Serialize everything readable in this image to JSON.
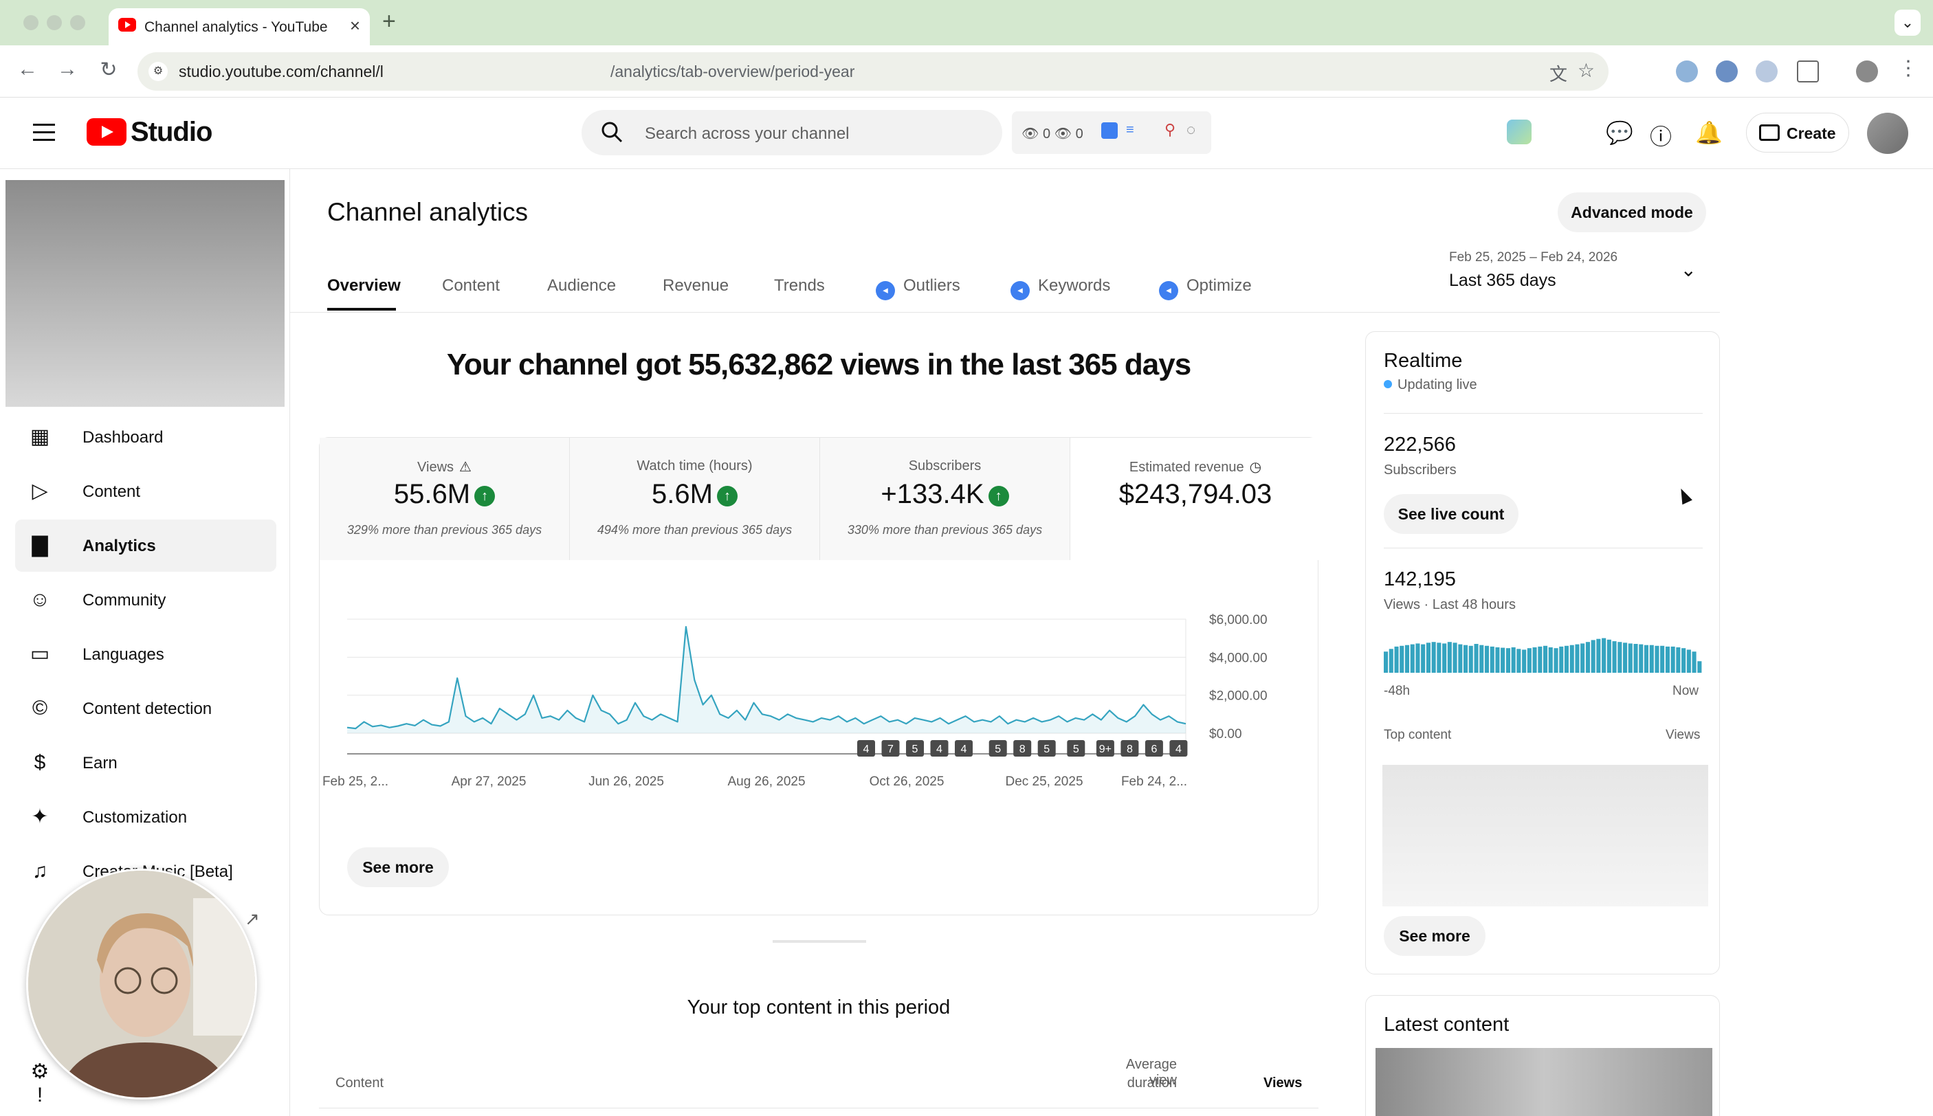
{
  "browser": {
    "tab_title": "Channel analytics - YouTube S",
    "url_part1": "studio.youtube.com/channel/l",
    "url_part2": "/analytics/tab-overview/period-year"
  },
  "header": {
    "logo_text": "Studio",
    "search_placeholder": "Search across your channel",
    "ext_strip_text": "👁 0  👁 0",
    "create_label": "Create"
  },
  "sidebar": {
    "items": [
      {
        "label": "Dashboard",
        "icon": "dashboard-icon"
      },
      {
        "label": "Content",
        "icon": "content-icon"
      },
      {
        "label": "Analytics",
        "icon": "analytics-icon"
      },
      {
        "label": "Community",
        "icon": "community-icon"
      },
      {
        "label": "Languages",
        "icon": "subtitles-icon"
      },
      {
        "label": "Content detection",
        "icon": "copyright-icon"
      },
      {
        "label": "Earn",
        "icon": "dollar-icon"
      },
      {
        "label": "Customization",
        "icon": "magic-wand-icon"
      },
      {
        "label": "Creator Music [Beta]",
        "icon": "music-icon"
      }
    ],
    "active_index": 2
  },
  "main": {
    "title": "Channel analytics",
    "advanced_mode_label": "Advanced mode",
    "date_range_sub": "Feb 25, 2025 – Feb 24, 2026",
    "date_range_main": "Last 365 days",
    "tabs": [
      {
        "label": "Overview",
        "badge": false
      },
      {
        "label": "Content",
        "badge": false
      },
      {
        "label": "Audience",
        "badge": false
      },
      {
        "label": "Revenue",
        "badge": false
      },
      {
        "label": "Trends",
        "badge": false
      },
      {
        "label": "Outliers",
        "badge": true
      },
      {
        "label": "Keywords",
        "badge": true
      },
      {
        "label": "Optimize",
        "badge": true
      }
    ],
    "headline": "Your channel got 55,632,862 views in the last 365 days",
    "metrics": [
      {
        "label": "Views",
        "value": "55.6M",
        "note": "329% more than previous 365 days",
        "trend": "up"
      },
      {
        "label": "Watch time (hours)",
        "value": "5.6M",
        "note": "494% more than previous 365 days",
        "trend": "up"
      },
      {
        "label": "Subscribers",
        "value": "+133.4K",
        "note": "330% more than previous 365 days",
        "trend": "up"
      },
      {
        "label": "Estimated revenue",
        "value": "$243,794.03",
        "note": "",
        "trend": "none"
      }
    ],
    "see_more_label": "See more",
    "top_content_title": "Your top content in this period",
    "top_content_cols": {
      "content": "Content",
      "avg_view_duration_1": "Average view",
      "avg_view_duration_2": "duration",
      "views": "Views"
    }
  },
  "chart_data": {
    "type": "line",
    "title": "",
    "x_tick_labels": [
      "Feb 25, 2...",
      "Apr 27, 2025",
      "Jun 26, 2025",
      "Aug 26, 2025",
      "Oct 26, 2025",
      "Dec 25, 2025",
      "Feb 24, 2..."
    ],
    "y_tick_labels": [
      "$6,000.00",
      "$4,000.00",
      "$2,000.00",
      "$0.00"
    ],
    "ylim": [
      0,
      6000
    ],
    "grid": true,
    "series": [
      {
        "color": "#35a4c0",
        "values": [
          300,
          250,
          600,
          350,
          420,
          300,
          380,
          500,
          400,
          700,
          450,
          380,
          600,
          2900,
          900,
          600,
          800,
          500,
          1300,
          1000,
          700,
          1000,
          2000,
          800,
          900,
          700,
          1200,
          800,
          600,
          2000,
          1200,
          1000,
          500,
          700,
          1600,
          900,
          700,
          1000,
          800,
          600,
          5600,
          2800,
          1500,
          2000,
          1000,
          800,
          1200,
          700,
          1600,
          1000,
          900,
          700,
          1000,
          800,
          700,
          600,
          800,
          700,
          900,
          600,
          800,
          500,
          700,
          900,
          600,
          700,
          500,
          800,
          700,
          600,
          800,
          500,
          700,
          900,
          600,
          700,
          600,
          900,
          500,
          700,
          600,
          800,
          600,
          700,
          900,
          600,
          800,
          700,
          1000,
          700,
          1200,
          800,
          600,
          900,
          1500,
          1000,
          700,
          900,
          600,
          500
        ]
      }
    ],
    "upload_markers": [
      "4",
      "7",
      "5",
      "4",
      "4",
      "5",
      "8",
      "5",
      "5",
      "9+",
      "8",
      "6",
      "4"
    ]
  },
  "realtime": {
    "title": "Realtime",
    "live_label": "Updating live",
    "subscribers_value": "222,566",
    "subscribers_label": "Subscribers",
    "see_live_label": "See live count",
    "views_value": "142,195",
    "views_label": "Views · Last 48 hours",
    "axis_left": "-48h",
    "axis_right": "Now",
    "top_content_label": "Top content",
    "views_col_label": "Views",
    "see_more_label": "See more",
    "bar_color": "#35a4c0",
    "bars": [
      0.55,
      0.62,
      0.68,
      0.7,
      0.72,
      0.74,
      0.76,
      0.74,
      0.78,
      0.8,
      0.78,
      0.76,
      0.8,
      0.78,
      0.74,
      0.72,
      0.7,
      0.75,
      0.72,
      0.7,
      0.68,
      0.66,
      0.65,
      0.64,
      0.66,
      0.62,
      0.6,
      0.64,
      0.66,
      0.68,
      0.7,
      0.66,
      0.64,
      0.68,
      0.7,
      0.72,
      0.74,
      0.76,
      0.8,
      0.85,
      0.88,
      0.9,
      0.86,
      0.82,
      0.8,
      0.78,
      0.76,
      0.75,
      0.74,
      0.72,
      0.72,
      0.7,
      0.7,
      0.68,
      0.68,
      0.66,
      0.64,
      0.6,
      0.55,
      0.3
    ]
  },
  "latest": {
    "title": "Latest content"
  }
}
